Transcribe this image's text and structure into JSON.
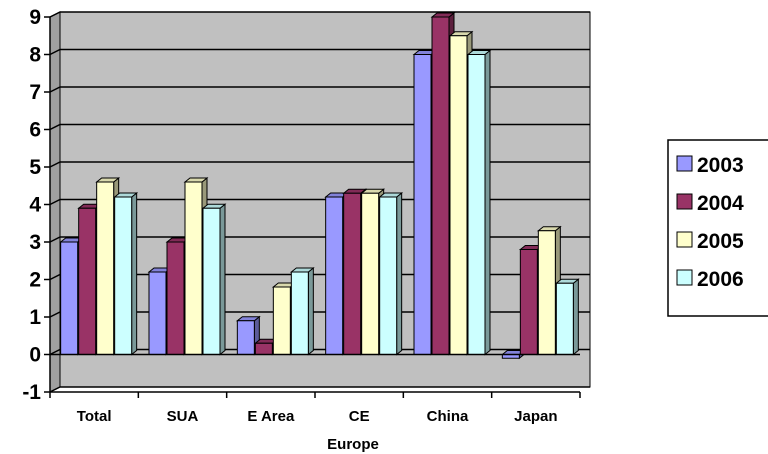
{
  "chart_data": {
    "type": "bar",
    "title": "",
    "xlabel": "Europe",
    "ylabel": "",
    "ylim": [
      -1,
      9
    ],
    "y_ticks": [
      -1,
      0,
      1,
      2,
      3,
      4,
      5,
      6,
      7,
      8,
      9
    ],
    "grid": true,
    "style": "3d-column",
    "legend_position": "right",
    "categories": [
      "Total",
      "SUA",
      "E Area",
      "CE",
      "China",
      "Japan"
    ],
    "series": [
      {
        "name": "2003",
        "color": "#9999ff",
        "values": [
          3.0,
          2.2,
          0.9,
          4.2,
          8.0,
          -0.1
        ]
      },
      {
        "name": "2004",
        "color": "#993366",
        "values": [
          3.9,
          3.0,
          0.3,
          4.3,
          9.0,
          2.8
        ]
      },
      {
        "name": "2005",
        "color": "#ffffcc",
        "values": [
          4.6,
          4.6,
          1.8,
          4.3,
          8.5,
          3.3
        ]
      },
      {
        "name": "2006",
        "color": "#ccffff",
        "values": [
          4.2,
          3.9,
          2.2,
          4.2,
          8.0,
          1.9
        ]
      }
    ],
    "plot_background": "#c0c0c0"
  }
}
